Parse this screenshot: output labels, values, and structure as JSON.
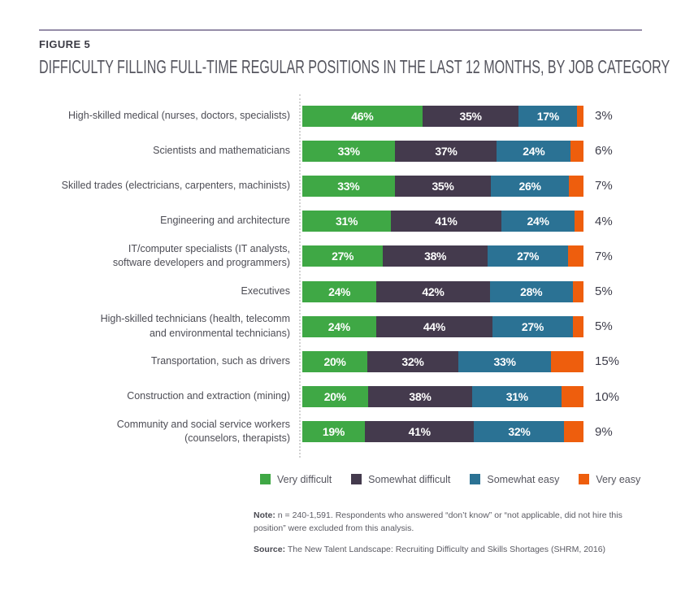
{
  "figure_label": "FIGURE 5",
  "title": "DIFFICULTY FILLING FULL-TIME REGULAR POSITIONS IN THE LAST 12 MONTHS, BY JOB CATEGORY",
  "chart_data": {
    "type": "bar",
    "variant": "horizontal-stacked",
    "unit": "%",
    "categories": [
      "High-skilled medical (nurses, doctors, specialists)",
      "Scientists and mathematicians",
      "Skilled trades (electricians, carpenters, machinists)",
      "Engineering and architecture",
      "IT/computer specialists (IT analysts,\nsoftware developers and programmers)",
      "Executives",
      "High-skilled technicians (health, telecomm\nand environmental technicians)",
      "Transportation, such as drivers",
      "Construction and extraction (mining)",
      "Community and social service workers\n(counselors, therapists)"
    ],
    "series": [
      {
        "name": "Very difficult",
        "color": "#3fa845",
        "values": [
          46,
          33,
          33,
          31,
          27,
          24,
          24,
          20,
          20,
          19
        ]
      },
      {
        "name": "Somewhat difficult",
        "color": "#443a4d",
        "values": [
          35,
          37,
          35,
          41,
          38,
          42,
          44,
          32,
          38,
          41
        ]
      },
      {
        "name": "Somewhat easy",
        "color": "#2b7294",
        "values": [
          17,
          24,
          26,
          24,
          27,
          28,
          27,
          33,
          31,
          32
        ]
      },
      {
        "name": "Very easy",
        "color": "#ee5e0d",
        "values": [
          3,
          6,
          7,
          4,
          7,
          5,
          5,
          15,
          10,
          9
        ],
        "label_position": "outside-right"
      }
    ],
    "value_labels": "inside segments in white; last series labelled outside right of bar",
    "legend_position": "bottom",
    "xlim": [
      0,
      100
    ],
    "grid": false
  },
  "legend": [
    "Very difficult",
    "Somewhat difficult",
    "Somewhat easy",
    "Very easy"
  ],
  "note": {
    "label": "Note:",
    "text": "n = 240-1,591. Respondents who answered “don’t know” or “not applicable, did not hire this position” were excluded from this analysis."
  },
  "source": {
    "label": "Source:",
    "text": "The New Talent Landscape: Recruiting Difficulty and Skills Shortages (SHRM, 2016)"
  }
}
